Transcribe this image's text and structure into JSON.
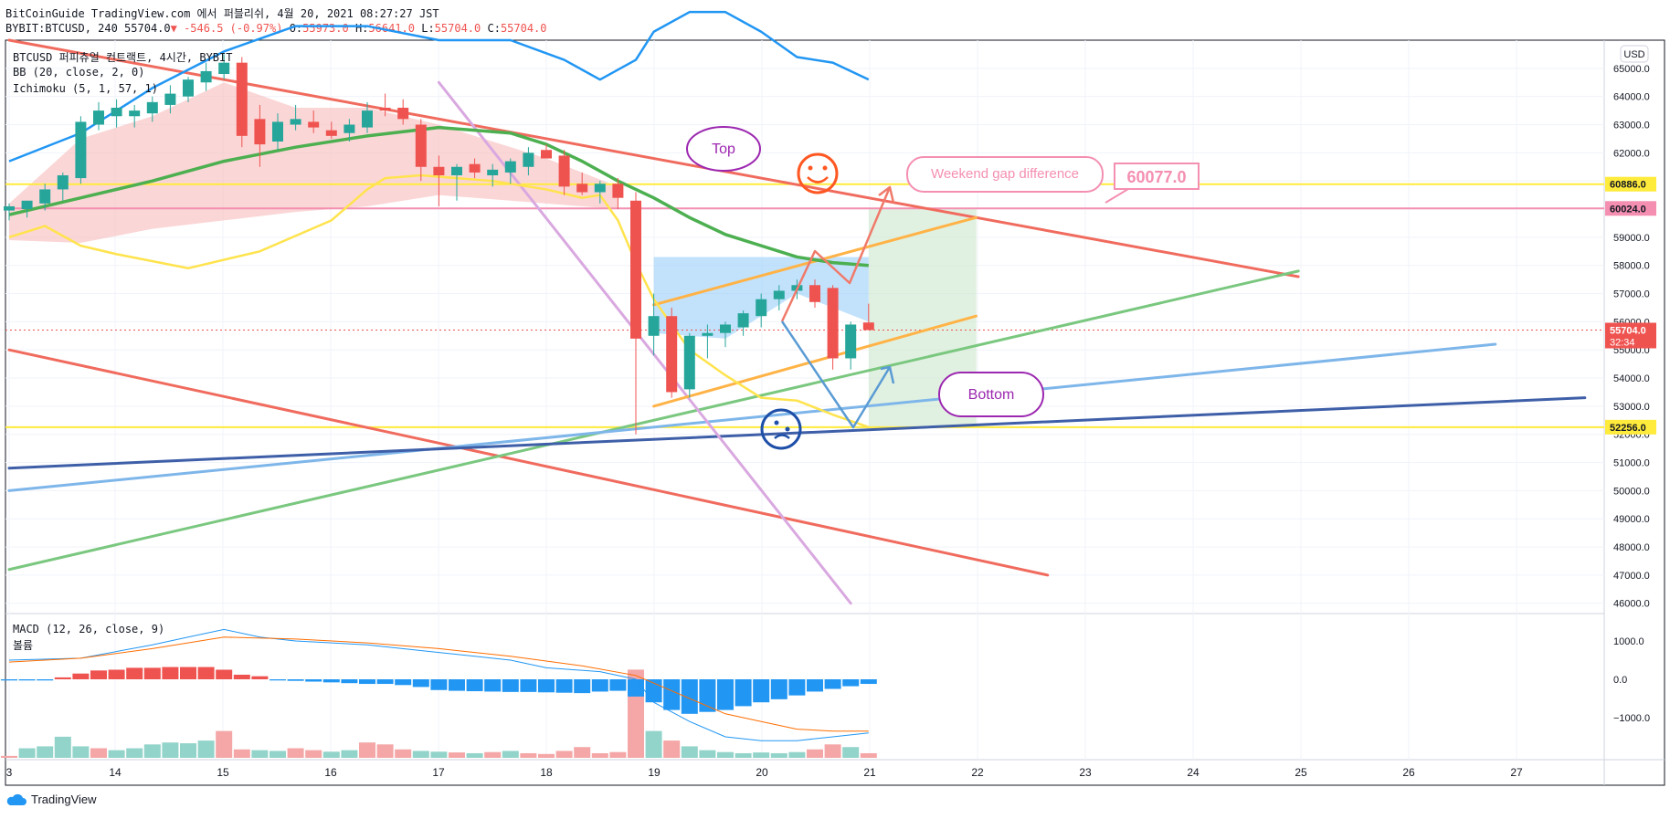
{
  "header": {
    "line1": "BitCoinGuide TradingView.com 에서 퍼블리쉬, 4월 20, 2021 08:27:27 JST",
    "symbol": "BYBIT:BTCUSD, 240 55704.0",
    "change": "▼ -546.5 (-0.97%)",
    "o_label": "O:",
    "o_val": "55973.0",
    "h_label": "H:",
    "h_val": "56641.0",
    "l_label": "L:",
    "l_val": "55704.0",
    "c_label": "C:",
    "c_val": "55704.0"
  },
  "legend": {
    "title": "BTCUSD 퍼피츄얼 컨트랙트, 4시간, BYBIT",
    "bb": "BB (20, close, 2, 0)",
    "ichimoku": "Ichimoku (5, 1, 57, 1)",
    "macd": "MACD (12, 26, close, 9)",
    "volume": "볼륨"
  },
  "currency": "USD",
  "colors": {
    "up": "#26a69a",
    "down": "#ef5350",
    "grid": "#f0f3fa",
    "bb": "#2196f3",
    "ma": "#4caf50",
    "yellow": "#ffeb3b",
    "trend_red": "#f06b5e"
  },
  "annotations": {
    "top": "Top",
    "bottom": "Bottom",
    "weekend": "Weekend gap difference",
    "gap_value": "60077.0"
  },
  "footer": {
    "brand": "TradingView"
  },
  "chart_data": {
    "type": "candlestick",
    "x_ticks": [
      "3",
      "14",
      "15",
      "16",
      "17",
      "18",
      "19",
      "20",
      "21",
      "22",
      "23",
      "24",
      "25",
      "26",
      "27"
    ],
    "y_ticks": [
      46000,
      47000,
      48000,
      49000,
      50000,
      51000,
      52000,
      53000,
      54000,
      55000,
      56000,
      57000,
      58000,
      59000,
      60000,
      61000,
      62000,
      63000,
      64000,
      65000
    ],
    "y_tick_labels": [
      "46000.0",
      "47000.0",
      "48000.0",
      "49000.0",
      "50000.0",
      "51000.0",
      "52000.0",
      "53000.0",
      "54000.0",
      "55000.0",
      "56000.0",
      "57000.0",
      "58000.0",
      "59000.0",
      "60000.0",
      "61000.0",
      "62000.0",
      "63000.0",
      "64000.0",
      "65000.0"
    ],
    "ylim": [
      45700,
      66000
    ],
    "price_labels": [
      {
        "value": 60886.0,
        "text": "60886.0",
        "color": "#ffeb3b",
        "text_color": "#131722"
      },
      {
        "value": 60024.0,
        "text": "60024.0",
        "color": "#f48fb1",
        "text_color": "#131722"
      },
      {
        "value": 55704.0,
        "text": "55704.0",
        "sub": "32:34",
        "color": "#ef5350",
        "text_color": "#ffffff"
      },
      {
        "value": 52256.0,
        "text": "52256.0",
        "color": "#ffeb3b",
        "text_color": "#131722"
      }
    ],
    "macd_ticks": [
      "1000.0",
      "0.0",
      "−1000.0"
    ],
    "macd_tick_values": [
      1000,
      0,
      -1000
    ],
    "candles": [
      {
        "o": 59950,
        "h": 60200,
        "l": 59600,
        "c": 60100
      },
      {
        "o": 60000,
        "h": 60300,
        "l": 59700,
        "c": 60300
      },
      {
        "o": 60200,
        "h": 60900,
        "l": 59950,
        "c": 60700
      },
      {
        "o": 60700,
        "h": 61300,
        "l": 60300,
        "c": 61200
      },
      {
        "o": 61100,
        "h": 63300,
        "l": 60900,
        "c": 63100
      },
      {
        "o": 63000,
        "h": 63800,
        "l": 62800,
        "c": 63500
      },
      {
        "o": 63300,
        "h": 63900,
        "l": 62900,
        "c": 63600
      },
      {
        "o": 63300,
        "h": 63700,
        "l": 62900,
        "c": 63500
      },
      {
        "o": 63400,
        "h": 64000,
        "l": 63100,
        "c": 63800
      },
      {
        "o": 63700,
        "h": 64400,
        "l": 63400,
        "c": 64100
      },
      {
        "o": 64000,
        "h": 64700,
        "l": 63800,
        "c": 64600
      },
      {
        "o": 64500,
        "h": 65200,
        "l": 64200,
        "c": 64900
      },
      {
        "o": 64800,
        "h": 65500,
        "l": 64600,
        "c": 65200
      },
      {
        "o": 65200,
        "h": 65400,
        "l": 62200,
        "c": 62600
      },
      {
        "o": 63200,
        "h": 63700,
        "l": 61500,
        "c": 62300
      },
      {
        "o": 62400,
        "h": 63400,
        "l": 62100,
        "c": 63100
      },
      {
        "o": 63000,
        "h": 63700,
        "l": 62800,
        "c": 63200
      },
      {
        "o": 63100,
        "h": 63500,
        "l": 62700,
        "c": 62900
      },
      {
        "o": 62800,
        "h": 63100,
        "l": 62500,
        "c": 62600
      },
      {
        "o": 62700,
        "h": 63200,
        "l": 62400,
        "c": 63000
      },
      {
        "o": 62900,
        "h": 63800,
        "l": 62700,
        "c": 63500
      },
      {
        "o": 63600,
        "h": 64100,
        "l": 63300,
        "c": 63500
      },
      {
        "o": 63600,
        "h": 63900,
        "l": 63000,
        "c": 63200
      },
      {
        "o": 63000,
        "h": 63200,
        "l": 61000,
        "c": 61500
      },
      {
        "o": 61500,
        "h": 61900,
        "l": 60100,
        "c": 61200
      },
      {
        "o": 61200,
        "h": 61600,
        "l": 60300,
        "c": 61500
      },
      {
        "o": 61600,
        "h": 61800,
        "l": 61100,
        "c": 61300
      },
      {
        "o": 61200,
        "h": 61600,
        "l": 60800,
        "c": 61400
      },
      {
        "o": 61300,
        "h": 61800,
        "l": 60900,
        "c": 61700
      },
      {
        "o": 61500,
        "h": 62200,
        "l": 61200,
        "c": 62000
      },
      {
        "o": 62100,
        "h": 62300,
        "l": 61800,
        "c": 61800
      },
      {
        "o": 61900,
        "h": 62100,
        "l": 60500,
        "c": 60800
      },
      {
        "o": 60900,
        "h": 61300,
        "l": 60500,
        "c": 60600
      },
      {
        "o": 60600,
        "h": 61000,
        "l": 60200,
        "c": 60900
      },
      {
        "o": 60900,
        "h": 61100,
        "l": 60000,
        "c": 60400
      },
      {
        "o": 60300,
        "h": 60600,
        "l": 52000,
        "c": 55400
      },
      {
        "o": 55500,
        "h": 57000,
        "l": 54800,
        "c": 56200
      },
      {
        "o": 56200,
        "h": 56500,
        "l": 53300,
        "c": 53500
      },
      {
        "o": 53600,
        "h": 55600,
        "l": 53300,
        "c": 55500
      },
      {
        "o": 55500,
        "h": 55900,
        "l": 54700,
        "c": 55600
      },
      {
        "o": 55600,
        "h": 56000,
        "l": 55100,
        "c": 55900
      },
      {
        "o": 55800,
        "h": 56400,
        "l": 55500,
        "c": 56300
      },
      {
        "o": 56200,
        "h": 57000,
        "l": 55800,
        "c": 56800
      },
      {
        "o": 56800,
        "h": 57300,
        "l": 56400,
        "c": 57100
      },
      {
        "o": 57100,
        "h": 57500,
        "l": 56800,
        "c": 57300
      },
      {
        "o": 57300,
        "h": 57500,
        "l": 56500,
        "c": 56700
      },
      {
        "o": 57200,
        "h": 57300,
        "l": 54300,
        "c": 54700
      },
      {
        "o": 54700,
        "h": 56000,
        "l": 54300,
        "c": 55900
      },
      {
        "o": 55973,
        "h": 56641,
        "l": 55704,
        "c": 55704
      }
    ],
    "bb_upper": [
      [
        0,
        61700
      ],
      [
        4,
        62700
      ],
      [
        8,
        64300
      ],
      [
        12,
        65600
      ],
      [
        16,
        66500
      ],
      [
        20,
        66500
      ],
      [
        24,
        66000
      ],
      [
        28,
        66000
      ],
      [
        31,
        65300
      ],
      [
        33,
        64600
      ],
      [
        35,
        65300
      ],
      [
        36,
        66300
      ],
      [
        38,
        67000
      ],
      [
        40,
        67000
      ],
      [
        42,
        66300
      ],
      [
        44,
        65400
      ],
      [
        46,
        65200
      ],
      [
        48,
        64600
      ]
    ],
    "ma_green": [
      [
        0,
        59800
      ],
      [
        4,
        60400
      ],
      [
        8,
        61000
      ],
      [
        12,
        61700
      ],
      [
        16,
        62200
      ],
      [
        20,
        62600
      ],
      [
        24,
        62900
      ],
      [
        28,
        62700
      ],
      [
        30,
        62300
      ],
      [
        32,
        61700
      ],
      [
        34,
        61000
      ],
      [
        36,
        60400
      ],
      [
        38,
        59700
      ],
      [
        40,
        59100
      ],
      [
        42,
        58700
      ],
      [
        44,
        58300
      ],
      [
        46,
        58100
      ],
      [
        48,
        58000
      ]
    ],
    "yellow_line": [
      [
        0,
        59000
      ],
      [
        2,
        59400
      ],
      [
        4,
        58700
      ],
      [
        6,
        58400
      ],
      [
        10,
        57900
      ],
      [
        14,
        58500
      ],
      [
        18,
        59600
      ],
      [
        20,
        60700
      ],
      [
        21,
        61100
      ],
      [
        23,
        61200
      ],
      [
        27,
        61000
      ],
      [
        30,
        60700
      ],
      [
        32,
        60400
      ],
      [
        33,
        60500
      ],
      [
        34,
        59600
      ],
      [
        35,
        58100
      ],
      [
        36,
        56800
      ],
      [
        37,
        55900
      ],
      [
        38,
        55000
      ],
      [
        40,
        54100
      ],
      [
        42,
        53300
      ],
      [
        44,
        53200
      ],
      [
        46,
        52700
      ],
      [
        48,
        52256
      ]
    ],
    "trendlines": [
      {
        "name": "upper-red",
        "from": [
          0,
          66000
        ],
        "to": [
          72,
          57600
        ],
        "color": "#f06b5e"
      },
      {
        "name": "lower-red",
        "from": [
          0,
          55000
        ],
        "to": [
          58,
          47000
        ],
        "color": "#f06b5e"
      },
      {
        "name": "green-support",
        "from": [
          0,
          47200
        ],
        "to": [
          72,
          57800
        ],
        "color": "#7ac77f"
      },
      {
        "name": "light-blue",
        "from": [
          0,
          50000
        ],
        "to": [
          83,
          55200
        ],
        "color": "#7eb6ea"
      },
      {
        "name": "navy",
        "from": [
          0,
          50800
        ],
        "to": [
          88,
          53300
        ],
        "color": "#3e5fa8"
      },
      {
        "name": "lavender",
        "from": [
          24,
          64500
        ],
        "to": [
          47,
          46000
        ],
        "color": "#d9a8e0"
      },
      {
        "name": "orange-upper",
        "from": [
          36,
          56600
        ],
        "to": [
          54,
          59700
        ],
        "color": "#ffb347"
      },
      {
        "name": "orange-lower",
        "from": [
          36,
          53000
        ],
        "to": [
          54,
          56200
        ],
        "color": "#ffb347"
      }
    ],
    "hlines": [
      60886.0,
      60024.0,
      52256.0
    ],
    "volume": [
      {
        "v": 5,
        "up": false
      },
      {
        "v": 25,
        "up": true
      },
      {
        "v": 30,
        "up": true
      },
      {
        "v": 55,
        "up": true
      },
      {
        "v": 30,
        "up": true
      },
      {
        "v": 25,
        "up": false
      },
      {
        "v": 20,
        "up": true
      },
      {
        "v": 25,
        "up": true
      },
      {
        "v": 35,
        "up": true
      },
      {
        "v": 40,
        "up": true
      },
      {
        "v": 38,
        "up": true
      },
      {
        "v": 45,
        "up": true
      },
      {
        "v": 70,
        "up": false
      },
      {
        "v": 22,
        "up": false
      },
      {
        "v": 20,
        "up": true
      },
      {
        "v": 18,
        "up": true
      },
      {
        "v": 25,
        "up": false
      },
      {
        "v": 20,
        "up": false
      },
      {
        "v": 16,
        "up": true
      },
      {
        "v": 20,
        "up": true
      },
      {
        "v": 40,
        "up": false
      },
      {
        "v": 35,
        "up": false
      },
      {
        "v": 22,
        "up": false
      },
      {
        "v": 18,
        "up": true
      },
      {
        "v": 16,
        "up": true
      },
      {
        "v": 14,
        "up": false
      },
      {
        "v": 12,
        "up": true
      },
      {
        "v": 15,
        "up": false
      },
      {
        "v": 18,
        "up": true
      },
      {
        "v": 12,
        "up": false
      },
      {
        "v": 10,
        "up": false
      },
      {
        "v": 18,
        "up": false
      },
      {
        "v": 28,
        "up": false
      },
      {
        "v": 12,
        "up": false
      },
      {
        "v": 15,
        "up": false
      },
      {
        "v": 230,
        "up": false
      },
      {
        "v": 70,
        "up": true
      },
      {
        "v": 45,
        "up": false
      },
      {
        "v": 30,
        "up": true
      },
      {
        "v": 20,
        "up": true
      },
      {
        "v": 15,
        "up": true
      },
      {
        "v": 12,
        "up": true
      },
      {
        "v": 14,
        "up": true
      },
      {
        "v": 12,
        "up": true
      },
      {
        "v": 15,
        "up": true
      },
      {
        "v": 22,
        "up": false
      },
      {
        "v": 35,
        "up": false
      },
      {
        "v": 28,
        "up": true
      },
      {
        "v": 12,
        "up": false
      }
    ],
    "macd_hist": [
      -30,
      -30,
      -30,
      50,
      150,
      230,
      250,
      300,
      300,
      320,
      320,
      320,
      250,
      120,
      80,
      -30,
      -40,
      -60,
      -80,
      -100,
      -120,
      -120,
      -150,
      -200,
      -280,
      -300,
      -310,
      -320,
      -330,
      -330,
      -340,
      -350,
      -360,
      -320,
      -300,
      -450,
      -600,
      -800,
      -900,
      -850,
      -800,
      -700,
      -600,
      -520,
      -420,
      -320,
      -250,
      -180,
      -120
    ],
    "macd_line": [
      [
        0,
        500
      ],
      [
        4,
        550
      ],
      [
        8,
        900
      ],
      [
        10,
        1100
      ],
      [
        12,
        1300
      ],
      [
        14,
        1100
      ],
      [
        16,
        1000
      ],
      [
        20,
        900
      ],
      [
        24,
        700
      ],
      [
        28,
        500
      ],
      [
        30,
        300
      ],
      [
        33,
        200
      ],
      [
        35,
        0
      ],
      [
        36,
        -600
      ],
      [
        38,
        -1100
      ],
      [
        40,
        -1500
      ],
      [
        42,
        -1600
      ],
      [
        44,
        -1600
      ],
      [
        46,
        -1500
      ],
      [
        48,
        -1400
      ]
    ],
    "signal_line": [
      [
        0,
        450
      ],
      [
        4,
        550
      ],
      [
        8,
        800
      ],
      [
        12,
        1100
      ],
      [
        16,
        1050
      ],
      [
        20,
        950
      ],
      [
        24,
        800
      ],
      [
        28,
        600
      ],
      [
        32,
        350
      ],
      [
        35,
        100
      ],
      [
        36,
        -100
      ],
      [
        38,
        -500
      ],
      [
        40,
        -900
      ],
      [
        42,
        -1100
      ],
      [
        44,
        -1300
      ],
      [
        46,
        -1350
      ],
      [
        48,
        -1350
      ]
    ]
  }
}
